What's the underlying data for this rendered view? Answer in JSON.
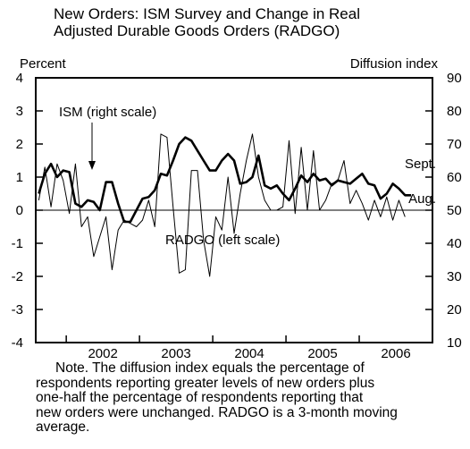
{
  "chart_data": {
    "type": "line",
    "title": "New Orders: ISM Survey and Change in Real Adjusted Durable Goods Orders (RADGO)",
    "title_lines": [
      "New Orders: ISM Survey and Change in Real",
      "Adjusted Durable Goods Orders (RADGO)"
    ],
    "ylabel_left": "Percent",
    "ylabel_right": "Diffusion index",
    "left_axis": {
      "ylim": [
        -4,
        4
      ],
      "ticks": [
        "4",
        "3",
        "2",
        "1",
        "0",
        "-1",
        "-2",
        "-3",
        "-4"
      ]
    },
    "right_axis": {
      "ylim": [
        10,
        90
      ],
      "ticks": [
        "90",
        "80",
        "70",
        "60",
        "50",
        "40",
        "30",
        "20",
        "10"
      ]
    },
    "x_axis": {
      "start": "2001-08",
      "end": "2006-12",
      "years": [
        "2002",
        "2003",
        "2004",
        "2005",
        "2006"
      ]
    },
    "grid": false,
    "reference_line": {
      "axis": "left",
      "value": 0
    },
    "annotations": [
      {
        "text": "ISM (right scale)"
      },
      {
        "text": "RADGO (left scale)"
      },
      {
        "text": "Sept."
      },
      {
        "text": "Aug."
      }
    ],
    "series": [
      {
        "name": "ISM",
        "axis": "right",
        "line": "thick",
        "end_label": "Sept.",
        "x": [
          "2001-08",
          "2001-09",
          "2001-10",
          "2001-11",
          "2001-12",
          "2002-01",
          "2002-02",
          "2002-03",
          "2002-04",
          "2002-05",
          "2002-06",
          "2002-07",
          "2002-08",
          "2002-09",
          "2002-10",
          "2002-11",
          "2002-12",
          "2003-01",
          "2003-02",
          "2003-03",
          "2003-04",
          "2003-05",
          "2003-06",
          "2003-07",
          "2003-08",
          "2003-09",
          "2003-10",
          "2003-11",
          "2003-12",
          "2004-01",
          "2004-02",
          "2004-03",
          "2004-04",
          "2004-05",
          "2004-06",
          "2004-07",
          "2004-08",
          "2004-09",
          "2004-10",
          "2004-11",
          "2004-12",
          "2005-01",
          "2005-02",
          "2005-03",
          "2005-04",
          "2005-05",
          "2005-06",
          "2005-07",
          "2005-08",
          "2005-09",
          "2005-10",
          "2005-11",
          "2005-12",
          "2006-01",
          "2006-02",
          "2006-03",
          "2006-04",
          "2006-05",
          "2006-06",
          "2006-07",
          "2006-08",
          "2006-09"
        ],
        "values": [
          55,
          61,
          64,
          60,
          62,
          61.5,
          52,
          51,
          53,
          52.5,
          50,
          58.5,
          58.5,
          52,
          46.5,
          46.5,
          50,
          53.5,
          54,
          56,
          61,
          60.5,
          65,
          70,
          72,
          71,
          68,
          65,
          62,
          62,
          65,
          67,
          65,
          58,
          58.5,
          60,
          66.5,
          57.5,
          56.5,
          57.5,
          55,
          53,
          56.5,
          60.5,
          58.5,
          61,
          59,
          59.5,
          57.5,
          59,
          58.5,
          58,
          59.5,
          61,
          58,
          57.5,
          53.5,
          55,
          58,
          56.5,
          54.5,
          54.5
        ]
      },
      {
        "name": "RADGO",
        "axis": "left",
        "line": "thin",
        "end_label": "Aug.",
        "x": [
          "2001-08",
          "2001-09",
          "2001-10",
          "2001-11",
          "2001-12",
          "2002-01",
          "2002-02",
          "2002-03",
          "2002-04",
          "2002-05",
          "2002-06",
          "2002-07",
          "2002-08",
          "2002-09",
          "2002-10",
          "2002-11",
          "2002-12",
          "2003-01",
          "2003-02",
          "2003-03",
          "2003-04",
          "2003-05",
          "2003-06",
          "2003-07",
          "2003-08",
          "2003-09",
          "2003-10",
          "2003-11",
          "2003-12",
          "2004-01",
          "2004-02",
          "2004-03",
          "2004-04",
          "2004-05",
          "2004-06",
          "2004-07",
          "2004-08",
          "2004-09",
          "2004-10",
          "2004-11",
          "2004-12",
          "2005-01",
          "2005-02",
          "2005-03",
          "2005-04",
          "2005-05",
          "2005-06",
          "2005-07",
          "2005-08",
          "2005-09",
          "2005-10",
          "2005-11",
          "2005-12",
          "2006-01",
          "2006-02",
          "2006-03",
          "2006-04",
          "2006-05",
          "2006-06",
          "2006-07",
          "2006-08"
        ],
        "values": [
          0.3,
          1.3,
          0.1,
          1.4,
          0.9,
          -0.1,
          1.4,
          -0.5,
          -0.2,
          -1.4,
          -0.8,
          -0.2,
          -1.8,
          -0.6,
          -0.3,
          -0.4,
          -0.5,
          -0.3,
          0.3,
          -0.5,
          2.3,
          2.2,
          0.1,
          -1.9,
          -1.8,
          1.2,
          1.2,
          -0.9,
          -2.0,
          -0.2,
          -0.6,
          1.0,
          -0.7,
          0.5,
          1.5,
          2.3,
          1.0,
          0.3,
          0.0,
          0.0,
          0.1,
          2.1,
          -0.1,
          1.9,
          0.0,
          1.8,
          0.0,
          0.3,
          0.8,
          0.9,
          1.5,
          0.2,
          0.6,
          0.2,
          -0.3,
          0.3,
          -0.2,
          0.4,
          -0.3,
          0.3,
          -0.2
        ]
      }
    ]
  },
  "note": {
    "lines": [
      "Note. The diffusion index equals the percentage of",
      "respondents reporting greater levels of new orders plus",
      "one-half the percentage of respondents reporting that",
      "new orders were unchanged. RADGO is a 3-month moving",
      "average."
    ]
  }
}
